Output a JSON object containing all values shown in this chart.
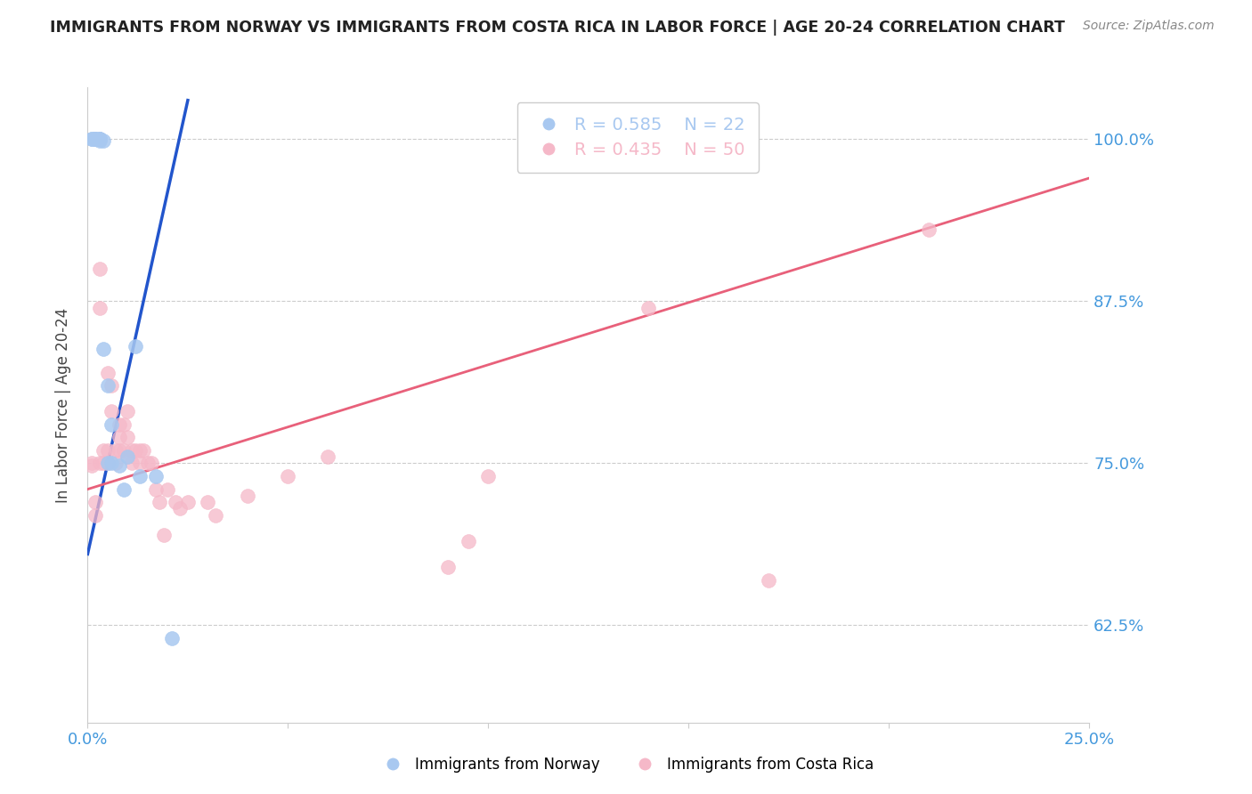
{
  "title": "IMMIGRANTS FROM NORWAY VS IMMIGRANTS FROM COSTA RICA IN LABOR FORCE | AGE 20-24 CORRELATION CHART",
  "source": "Source: ZipAtlas.com",
  "ylabel": "In Labor Force | Age 20-24",
  "norway_label": "Immigrants from Norway",
  "costa_rica_label": "Immigrants from Costa Rica",
  "norway_R": 0.585,
  "norway_N": 22,
  "costa_rica_R": 0.435,
  "costa_rica_N": 50,
  "xlim": [
    0.0,
    0.25
  ],
  "ylim": [
    0.55,
    1.04
  ],
  "yticks": [
    0.625,
    0.75,
    0.875,
    1.0
  ],
  "ytick_labels": [
    "62.5%",
    "75.0%",
    "87.5%",
    "100.0%"
  ],
  "xticks": [
    0.0,
    0.05,
    0.1,
    0.15,
    0.2,
    0.25
  ],
  "norway_color": "#a8c8f0",
  "costa_rica_color": "#f5b8c8",
  "norway_line_color": "#2255cc",
  "costa_rica_line_color": "#e8607a",
  "right_axis_color": "#4499dd",
  "background_color": "#ffffff",
  "grid_color": "#cccccc",
  "norway_x": [
    0.001,
    0.001,
    0.002,
    0.002,
    0.002,
    0.003,
    0.003,
    0.003,
    0.003,
    0.004,
    0.004,
    0.005,
    0.005,
    0.006,
    0.006,
    0.008,
    0.009,
    0.01,
    0.012,
    0.013,
    0.017,
    0.021
  ],
  "norway_y": [
    1.0,
    1.0,
    1.0,
    1.0,
    1.0,
    1.0,
    1.0,
    1.0,
    0.999,
    0.999,
    0.838,
    0.81,
    0.75,
    0.78,
    0.75,
    0.748,
    0.73,
    0.755,
    0.84,
    0.74,
    0.74,
    0.615
  ],
  "costa_rica_x": [
    0.001,
    0.001,
    0.002,
    0.002,
    0.003,
    0.003,
    0.003,
    0.004,
    0.004,
    0.005,
    0.005,
    0.005,
    0.006,
    0.006,
    0.007,
    0.007,
    0.008,
    0.008,
    0.008,
    0.009,
    0.009,
    0.01,
    0.01,
    0.01,
    0.011,
    0.011,
    0.012,
    0.013,
    0.013,
    0.014,
    0.015,
    0.016,
    0.017,
    0.018,
    0.019,
    0.02,
    0.022,
    0.023,
    0.025,
    0.03,
    0.032,
    0.04,
    0.05,
    0.06,
    0.09,
    0.095,
    0.1,
    0.14,
    0.17,
    0.21
  ],
  "costa_rica_y": [
    0.75,
    0.748,
    0.72,
    0.71,
    0.9,
    0.87,
    0.75,
    0.76,
    0.75,
    0.82,
    0.76,
    0.75,
    0.81,
    0.79,
    0.76,
    0.75,
    0.78,
    0.77,
    0.76,
    0.78,
    0.76,
    0.79,
    0.77,
    0.755,
    0.76,
    0.75,
    0.76,
    0.76,
    0.75,
    0.76,
    0.75,
    0.75,
    0.73,
    0.72,
    0.695,
    0.73,
    0.72,
    0.715,
    0.72,
    0.72,
    0.71,
    0.725,
    0.74,
    0.755,
    0.67,
    0.69,
    0.74,
    0.87,
    0.66,
    0.93
  ],
  "norway_trend_x": [
    0.0,
    0.025
  ],
  "norway_trend_y": [
    0.68,
    1.03
  ],
  "costa_rica_trend_x": [
    0.0,
    0.25
  ],
  "costa_rica_trend_y": [
    0.73,
    0.97
  ]
}
